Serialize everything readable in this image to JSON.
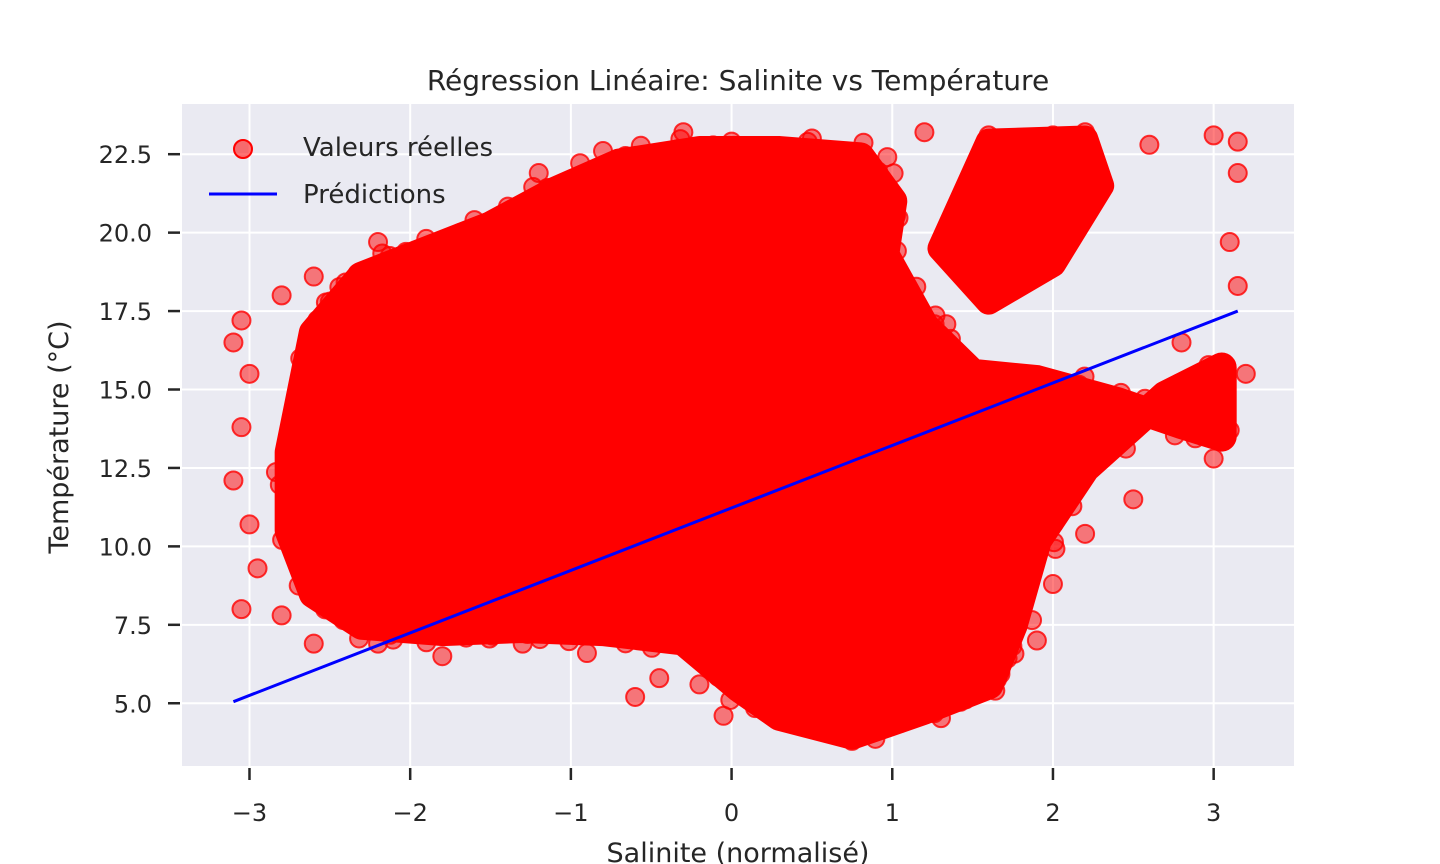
{
  "chart_data": {
    "type": "scatter",
    "title": "Régression Linéaire: Salinite vs Température",
    "xlabel": "Salinite (normalisé)",
    "ylabel": "Température (°C)",
    "xlim": [
      -3.42,
      3.5
    ],
    "ylim": [
      3.0,
      24.1
    ],
    "x_ticks": [
      -3,
      -2,
      -1,
      0,
      1,
      2,
      3
    ],
    "x_tick_labels": [
      "−3",
      "−2",
      "−1",
      "0",
      "1",
      "2",
      "3"
    ],
    "y_ticks": [
      5.0,
      7.5,
      10.0,
      12.5,
      15.0,
      17.5,
      20.0,
      22.5
    ],
    "y_tick_labels": [
      "5.0",
      "7.5",
      "10.0",
      "12.5",
      "15.0",
      "17.5",
      "20.0",
      "22.5"
    ],
    "grid": true,
    "legend_position": "upper-left",
    "series": [
      {
        "name": "Valeurs réelles",
        "kind": "scatter",
        "color": "#ff0000",
        "approx_points": [
          [
            -3.1,
            16.5
          ],
          [
            -3.05,
            17.2
          ],
          [
            -3.0,
            15.5
          ],
          [
            -3.05,
            13.8
          ],
          [
            -3.1,
            12.1
          ],
          [
            -3.0,
            10.7
          ],
          [
            -2.95,
            9.3
          ],
          [
            -3.05,
            8.0
          ],
          [
            -2.8,
            18.0
          ],
          [
            -2.6,
            18.6
          ],
          [
            -2.5,
            17.8
          ],
          [
            -2.2,
            19.7
          ],
          [
            -1.9,
            19.8
          ],
          [
            -1.6,
            20.4
          ],
          [
            -1.2,
            21.9
          ],
          [
            -0.8,
            22.6
          ],
          [
            -0.3,
            23.2
          ],
          [
            0.0,
            22.9
          ],
          [
            0.5,
            23.0
          ],
          [
            1.2,
            23.2
          ],
          [
            1.6,
            23.1
          ],
          [
            2.0,
            23.1
          ],
          [
            2.2,
            23.2
          ],
          [
            2.6,
            22.8
          ],
          [
            3.0,
            23.1
          ],
          [
            3.15,
            22.9
          ],
          [
            3.15,
            21.9
          ],
          [
            3.1,
            19.7
          ],
          [
            3.15,
            18.3
          ],
          [
            3.2,
            15.5
          ],
          [
            3.1,
            13.7
          ],
          [
            3.0,
            12.8
          ],
          [
            2.5,
            11.5
          ],
          [
            2.2,
            10.4
          ],
          [
            2.0,
            8.8
          ],
          [
            1.9,
            7.0
          ],
          [
            1.6,
            5.6
          ],
          [
            1.3,
            4.9
          ],
          [
            1.0,
            4.3
          ],
          [
            0.75,
            3.8
          ],
          [
            0.5,
            4.2
          ],
          [
            0.25,
            4.7
          ],
          [
            0.0,
            5.8
          ],
          [
            -0.1,
            6.0
          ],
          [
            -0.2,
            5.6
          ],
          [
            -0.45,
            5.8
          ],
          [
            -0.6,
            5.2
          ],
          [
            -0.9,
            6.6
          ],
          [
            -1.3,
            6.9
          ],
          [
            -1.8,
            6.5
          ],
          [
            -2.2,
            6.9
          ],
          [
            -2.6,
            6.9
          ],
          [
            -2.8,
            7.8
          ],
          [
            -0.05,
            4.6
          ],
          [
            1.45,
            13.1
          ],
          [
            -1.0,
            12.0
          ],
          [
            0.2,
            17.0
          ],
          [
            1.8,
            20.0
          ],
          [
            2.8,
            16.5
          ],
          [
            -2.0,
            11.5
          ]
        ]
      },
      {
        "name": "Prédictions",
        "kind": "line",
        "color": "#0000ff",
        "points": [
          [
            -3.1,
            5.05
          ],
          [
            3.15,
            17.5
          ]
        ]
      }
    ]
  }
}
